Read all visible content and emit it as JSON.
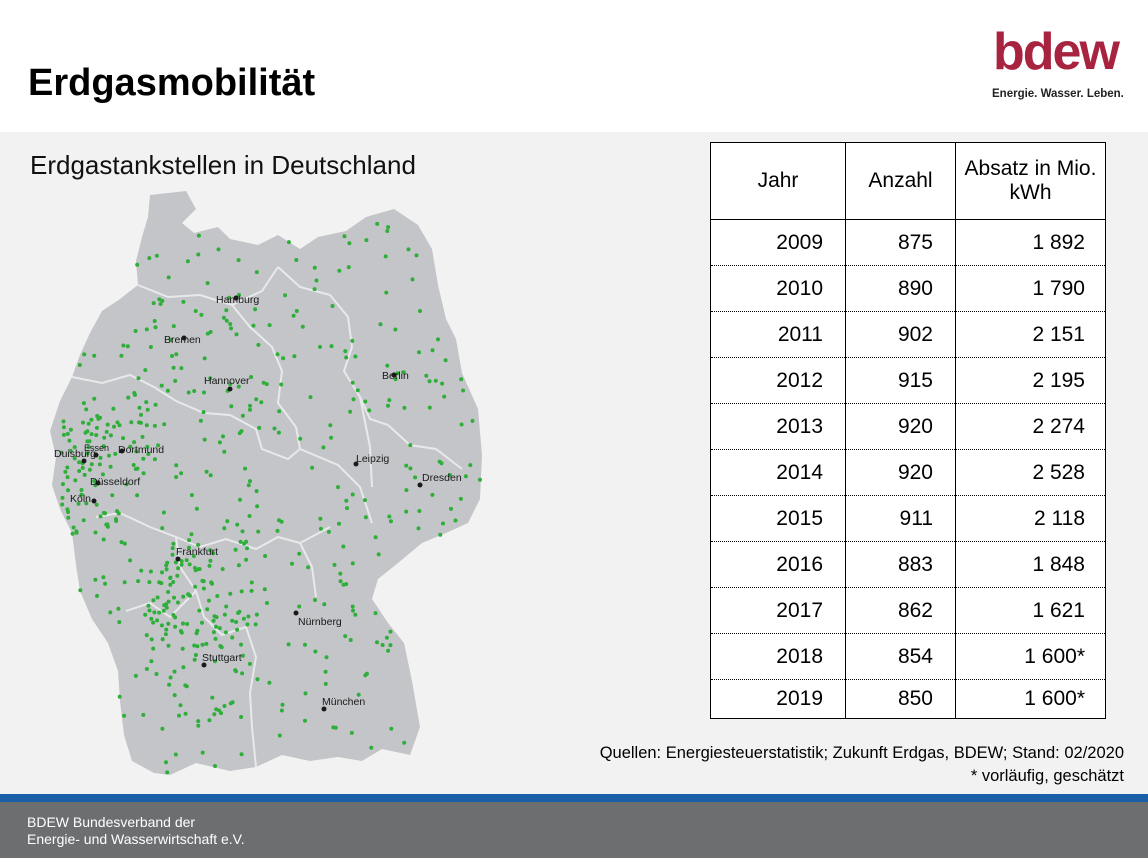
{
  "header": {
    "title": "Erdgasmobilität",
    "logo": {
      "wordmark": "bdew",
      "tagline": "Energie. Wasser. Leben."
    }
  },
  "map": {
    "subtitle": "Erdgastankstellen in Deutschland",
    "cities": [
      "Hamburg",
      "Bremen",
      "Hannover",
      "Berlin",
      "Dortmund",
      "Duisburg",
      "Essen",
      "Düsseldorf",
      "Köln",
      "Leipzig",
      "Dresden",
      "Frankfurt",
      "Nürnberg",
      "Stuttgart",
      "München"
    ],
    "colors": {
      "land": "#c3c5c8",
      "borders": "#e8e9ea",
      "stations": "#2fae3a",
      "city": "#1a1a1a"
    }
  },
  "table": {
    "headers": [
      "Jahr",
      "Anzahl",
      "Absatz in Mio. kWh"
    ],
    "rows": [
      [
        "2009",
        "875",
        "1 892"
      ],
      [
        "2010",
        "890",
        "1 790"
      ],
      [
        "2011",
        "902",
        "2 151"
      ],
      [
        "2012",
        "915",
        "2 195"
      ],
      [
        "2013",
        "920",
        "2 274"
      ],
      [
        "2014",
        "920",
        "2 528"
      ],
      [
        "2015",
        "911",
        "2 118"
      ],
      [
        "2016",
        "883",
        "1 848"
      ],
      [
        "2017",
        "862",
        "1 621"
      ],
      [
        "2018",
        "854",
        "1 600*"
      ],
      [
        "2019",
        "850",
        "1 600*"
      ]
    ]
  },
  "source": {
    "line1": "Quellen: Energiesteuerstatistik; Zukunft Erdgas, BDEW; Stand: 02/2020",
    "line2": "* vorläufig, geschätzt"
  },
  "footer": {
    "line1": "BDEW Bundesverband der",
    "line2": "Energie- und Wasserwirtschaft e.V."
  },
  "colors": {
    "brand": "#a8233f",
    "footer_bg": "#6d6e70",
    "footer_stripe": "#1a5ea8",
    "content_bg": "#f2f2f2"
  }
}
